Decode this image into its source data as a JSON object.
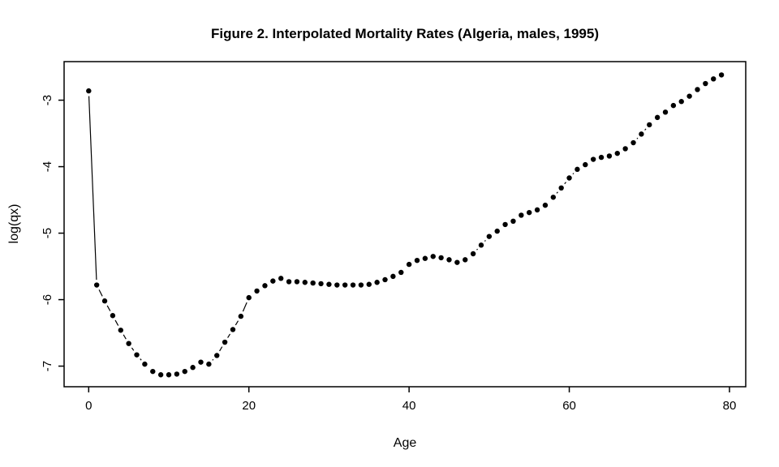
{
  "figure": {
    "background": "#ffffff",
    "foreground": "#000000"
  },
  "chart_data": {
    "type": "scatter",
    "style": "R-base-graphics, points with gapped connecting line segments (type='b'), solid round markers (pch=20)",
    "title": "Figure 2. Interpolated Mortality Rates (Algeria, males, 1995)",
    "xlabel": "Age",
    "ylabel": "log(qx)",
    "xlim": [
      -3.07,
      82.03
    ],
    "ylim": [
      -7.31,
      -2.42
    ],
    "xticks": [
      0,
      20,
      40,
      60,
      80
    ],
    "yticks": [
      -3,
      -4,
      -5,
      -6,
      -7
    ],
    "grid": "off",
    "legend": "none",
    "point_color": "#000000",
    "line_color": "#000000",
    "x": [
      0,
      1,
      2,
      3,
      4,
      5,
      6,
      7,
      8,
      9,
      10,
      11,
      12,
      13,
      14,
      15,
      16,
      17,
      18,
      19,
      20,
      21,
      22,
      23,
      24,
      25,
      26,
      27,
      28,
      29,
      30,
      31,
      32,
      33,
      34,
      35,
      36,
      37,
      38,
      39,
      40,
      41,
      42,
      43,
      44,
      45,
      46,
      47,
      48,
      49,
      50,
      51,
      52,
      53,
      54,
      55,
      56,
      57,
      58,
      59,
      60,
      61,
      62,
      63,
      64,
      65,
      66,
      67,
      68,
      69,
      70,
      71,
      72,
      73,
      74,
      75,
      76,
      77,
      78,
      79
    ],
    "y": [
      -2.86,
      -5.78,
      -6.02,
      -6.24,
      -6.46,
      -6.66,
      -6.83,
      -6.97,
      -7.08,
      -7.13,
      -7.13,
      -7.12,
      -7.08,
      -7.02,
      -6.94,
      -6.97,
      -6.84,
      -6.64,
      -6.45,
      -6.25,
      -5.97,
      -5.87,
      -5.79,
      -5.72,
      -5.68,
      -5.73,
      -5.73,
      -5.74,
      -5.75,
      -5.76,
      -5.77,
      -5.78,
      -5.78,
      -5.78,
      -5.78,
      -5.77,
      -5.74,
      -5.7,
      -5.65,
      -5.59,
      -5.47,
      -5.41,
      -5.38,
      -5.35,
      -5.37,
      -5.4,
      -5.44,
      -5.4,
      -5.31,
      -5.18,
      -5.05,
      -4.97,
      -4.87,
      -4.82,
      -4.73,
      -4.69,
      -4.65,
      -4.58,
      -4.46,
      -4.32,
      -4.17,
      -4.04,
      -3.97,
      -3.89,
      -3.86,
      -3.84,
      -3.8,
      -3.73,
      -3.64,
      -3.51,
      -3.37,
      -3.26,
      -3.18,
      -3.08,
      -3.02,
      -2.94,
      -2.84,
      -2.75,
      -2.68,
      -2.62
    ]
  }
}
